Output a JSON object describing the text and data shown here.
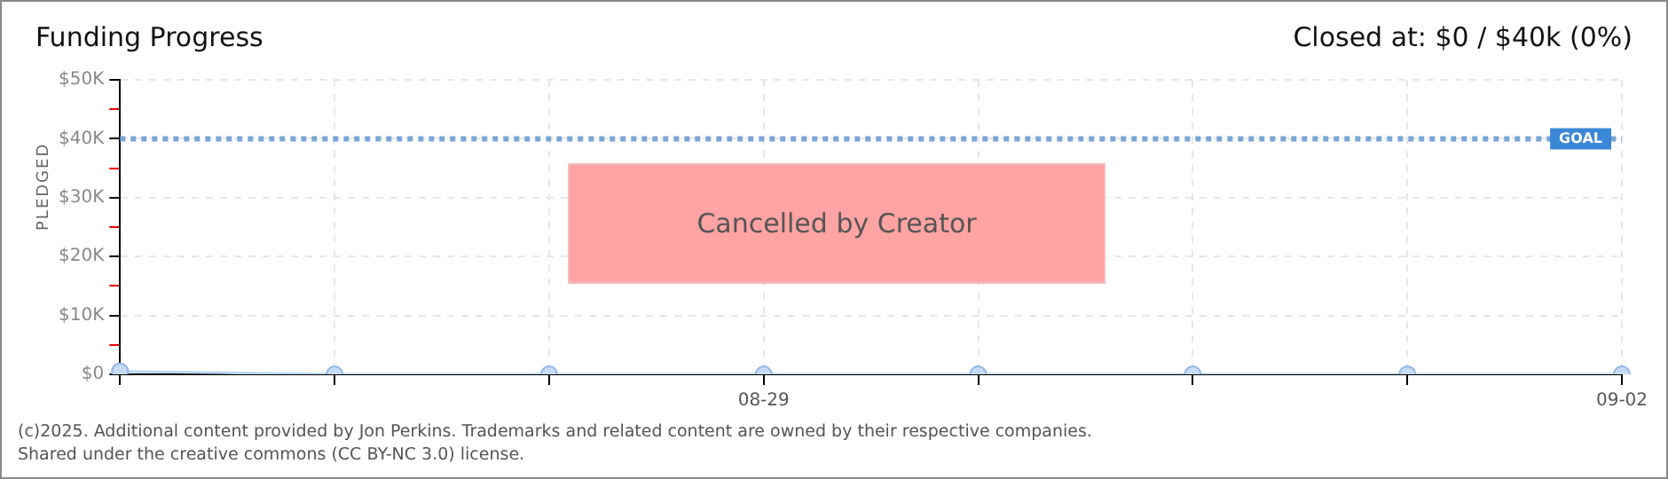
{
  "chart_data": {
    "type": "line",
    "title": "Funding Progress",
    "subtitle": "Closed at: $0 / $40k (0%)",
    "ylabel": "PLEDGED",
    "categories": [
      null,
      null,
      null,
      "08-29",
      null,
      null,
      null,
      "09-02"
    ],
    "series": [
      {
        "color": "#b9d7f3",
        "values": [
          500,
          0,
          0,
          0,
          0,
          0,
          0,
          0
        ]
      }
    ],
    "marker": "circle",
    "grid": true,
    "legend": false,
    "ylim": [
      0,
      50000
    ],
    "yticks": [
      {
        "value": 0,
        "label": "$0"
      },
      {
        "value": 5000,
        "label": null
      },
      {
        "value": 10000,
        "label": "$10K"
      },
      {
        "value": 15000,
        "label": null
      },
      {
        "value": 20000,
        "label": "$20K"
      },
      {
        "value": 25000,
        "label": null
      },
      {
        "value": 30000,
        "label": "$30K"
      },
      {
        "value": 35000,
        "label": null
      },
      {
        "value": 40000,
        "label": "$40K"
      },
      {
        "value": 45000,
        "label": null
      },
      {
        "value": 50000,
        "label": "$50K"
      }
    ],
    "ref_lines": [
      {
        "axis": "y",
        "value": 40000,
        "label": "GOAL",
        "color": "#7aa6d6",
        "line_style": "dotted"
      }
    ],
    "annotations": [
      "Cancelled by Creator",
      "(c)2025. Additional content provided by Jon Perkins. Trademarks and related content are owned by their respective companies.",
      "Shared under the creative commons (CC BY-NC 3.0) license."
    ]
  }
}
